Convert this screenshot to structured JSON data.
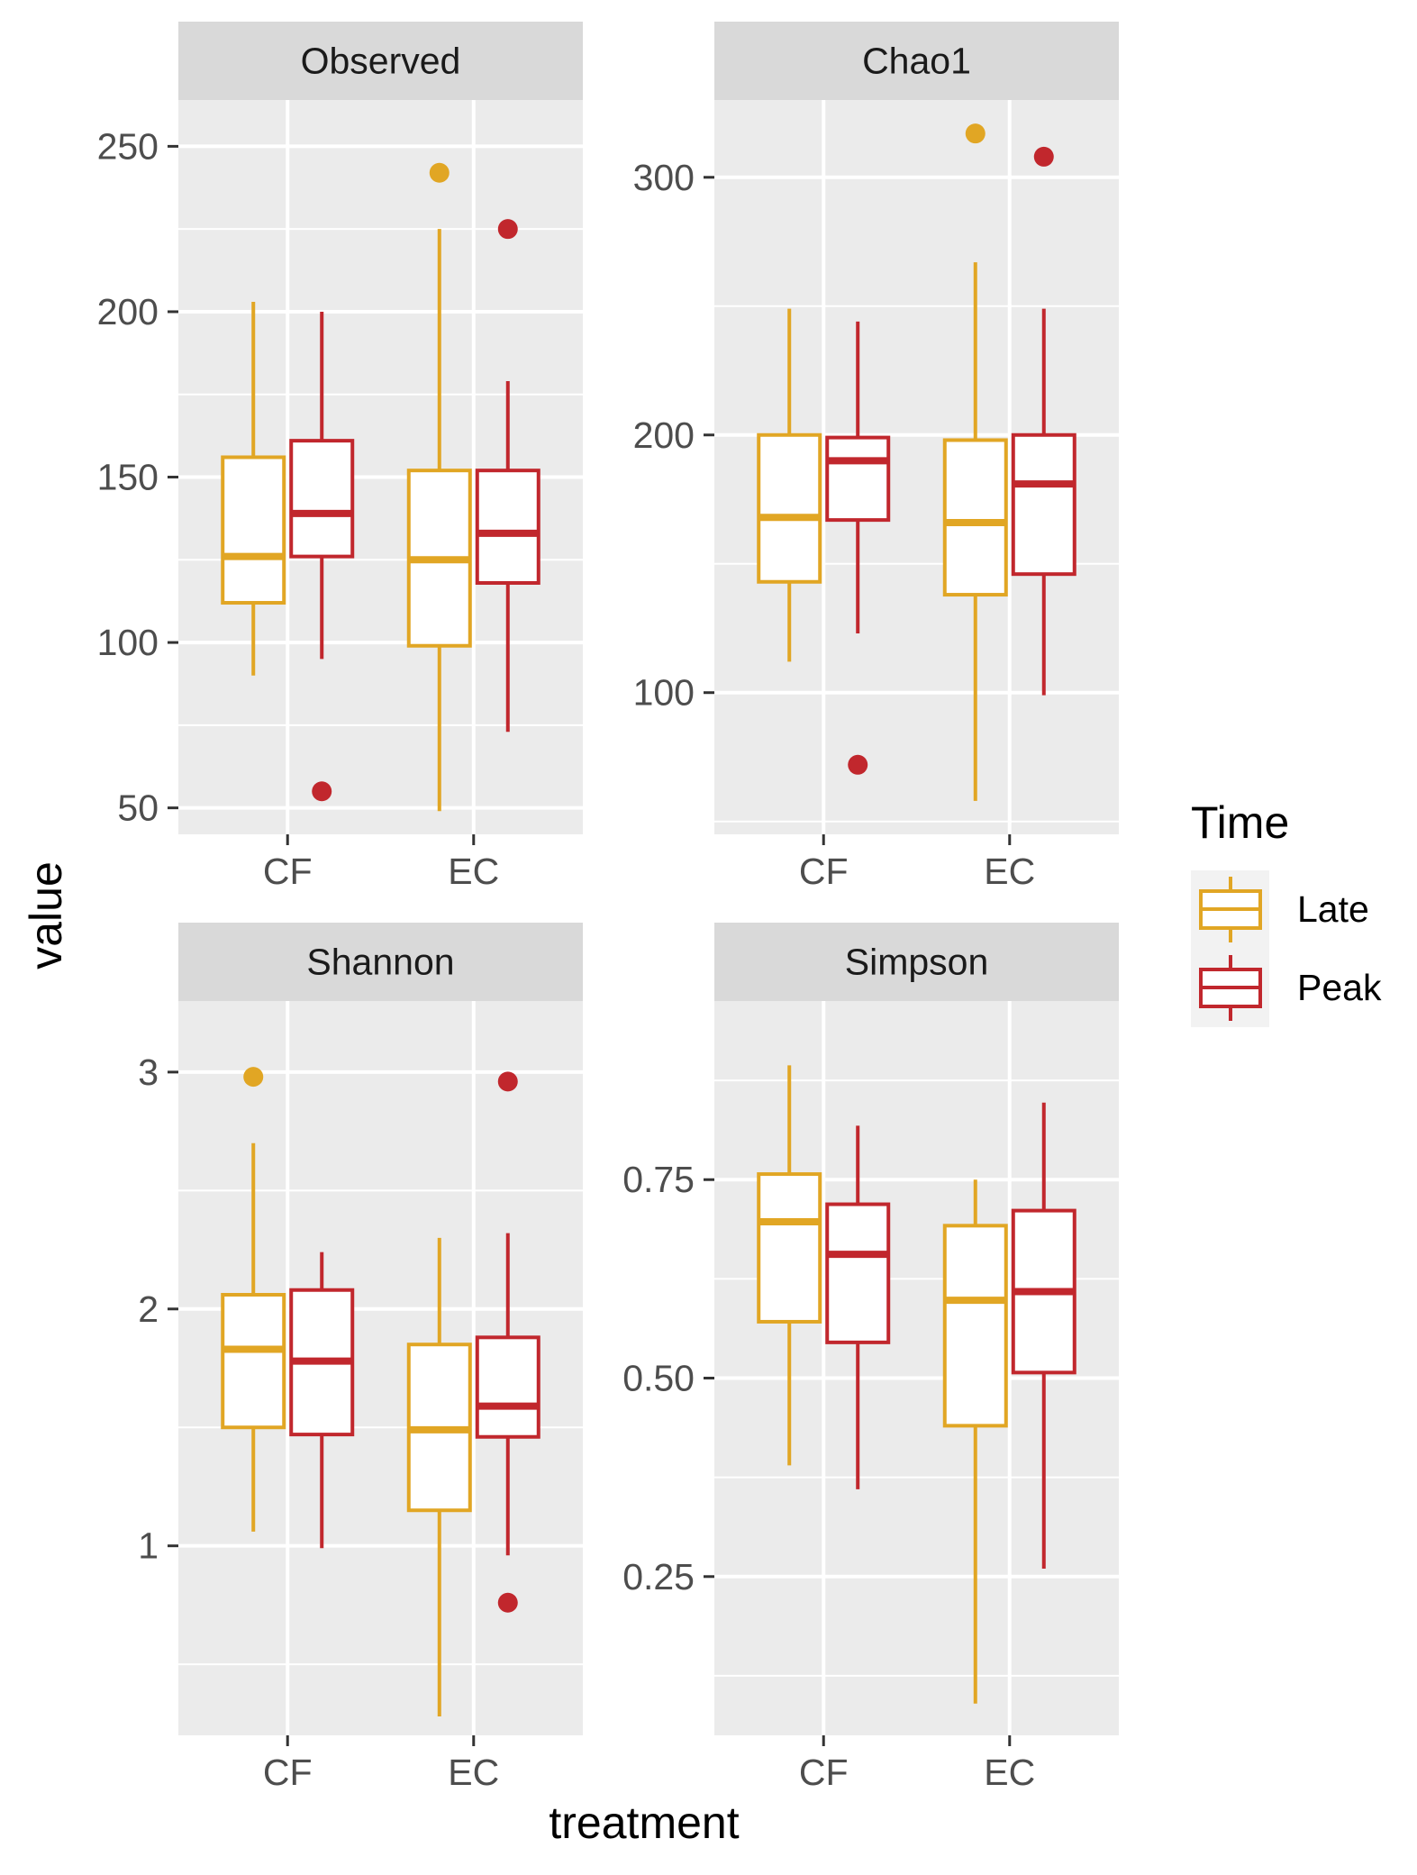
{
  "chart_data": {
    "type": "boxplot",
    "xlabel": "treatment",
    "ylabel": "value",
    "categories": [
      "CF",
      "EC"
    ],
    "legend": {
      "title": "Time",
      "position": "right",
      "items": [
        {
          "name": "Late",
          "color": "#E1A624"
        },
        {
          "name": "Peak",
          "color": "#C1272D"
        }
      ]
    },
    "grid": true,
    "panels": [
      {
        "title": "Observed",
        "ylim": [
          42,
          264
        ],
        "yticks": [
          50,
          100,
          150,
          200,
          250
        ],
        "ytick_labels": [
          "50",
          "100",
          "150",
          "200",
          "250"
        ],
        "boxes": [
          {
            "category": "CF",
            "series": "Late",
            "lower": 90,
            "q1": 112,
            "median": 126,
            "q3": 156,
            "upper": 203,
            "outliers": []
          },
          {
            "category": "CF",
            "series": "Peak",
            "lower": 95,
            "q1": 126,
            "median": 139,
            "q3": 161,
            "upper": 200,
            "outliers": [
              55
            ]
          },
          {
            "category": "EC",
            "series": "Late",
            "lower": 49,
            "q1": 99,
            "median": 125,
            "q3": 152,
            "upper": 225,
            "outliers": [
              242
            ]
          },
          {
            "category": "EC",
            "series": "Peak",
            "lower": 73,
            "q1": 118,
            "median": 133,
            "q3": 152,
            "upper": 179,
            "outliers": [
              225
            ]
          }
        ]
      },
      {
        "title": "Chao1",
        "ylim": [
          45,
          330
        ],
        "yticks": [
          100,
          200,
          300
        ],
        "ytick_labels": [
          "100",
          "200",
          "300"
        ],
        "boxes": [
          {
            "category": "CF",
            "series": "Late",
            "lower": 112,
            "q1": 143,
            "median": 168,
            "q3": 200,
            "upper": 249,
            "outliers": []
          },
          {
            "category": "CF",
            "series": "Peak",
            "lower": 123,
            "q1": 167,
            "median": 190,
            "q3": 199,
            "upper": 244,
            "outliers": [
              72
            ]
          },
          {
            "category": "EC",
            "series": "Late",
            "lower": 58,
            "q1": 138,
            "median": 166,
            "q3": 198,
            "upper": 267,
            "outliers": [
              317
            ]
          },
          {
            "category": "EC",
            "series": "Peak",
            "lower": 99,
            "q1": 146,
            "median": 181,
            "q3": 200,
            "upper": 249,
            "outliers": [
              308
            ]
          }
        ]
      },
      {
        "title": "Shannon",
        "ylim": [
          0.2,
          3.3
        ],
        "yticks": [
          1,
          2,
          3
        ],
        "ytick_labels": [
          "1",
          "2",
          "3"
        ],
        "boxes": [
          {
            "category": "CF",
            "series": "Late",
            "lower": 1.06,
            "q1": 1.5,
            "median": 1.83,
            "q3": 2.06,
            "upper": 2.7,
            "outliers": [
              2.98
            ]
          },
          {
            "category": "CF",
            "series": "Peak",
            "lower": 0.99,
            "q1": 1.47,
            "median": 1.78,
            "q3": 2.08,
            "upper": 2.24,
            "outliers": []
          },
          {
            "category": "EC",
            "series": "Late",
            "lower": 0.28,
            "q1": 1.15,
            "median": 1.49,
            "q3": 1.85,
            "upper": 2.3,
            "outliers": []
          },
          {
            "category": "EC",
            "series": "Peak",
            "lower": 0.96,
            "q1": 1.46,
            "median": 1.59,
            "q3": 1.88,
            "upper": 2.32,
            "outliers": [
              2.96,
              0.76
            ]
          }
        ]
      },
      {
        "title": "Simpson",
        "ylim": [
          0.05,
          0.975
        ],
        "yticks": [
          0.25,
          0.5,
          0.75
        ],
        "ytick_labels": [
          "0.25",
          "0.50",
          "0.75"
        ],
        "boxes": [
          {
            "category": "CF",
            "series": "Late",
            "lower": 0.39,
            "q1": 0.571,
            "median": 0.697,
            "q3": 0.757,
            "upper": 0.894,
            "outliers": []
          },
          {
            "category": "CF",
            "series": "Peak",
            "lower": 0.36,
            "q1": 0.545,
            "median": 0.656,
            "q3": 0.719,
            "upper": 0.818,
            "outliers": []
          },
          {
            "category": "EC",
            "series": "Late",
            "lower": 0.09,
            "q1": 0.44,
            "median": 0.598,
            "q3": 0.692,
            "upper": 0.75,
            "outliers": []
          },
          {
            "category": "EC",
            "series": "Peak",
            "lower": 0.26,
            "q1": 0.507,
            "median": 0.609,
            "q3": 0.711,
            "upper": 0.847,
            "outliers": []
          }
        ]
      }
    ]
  }
}
